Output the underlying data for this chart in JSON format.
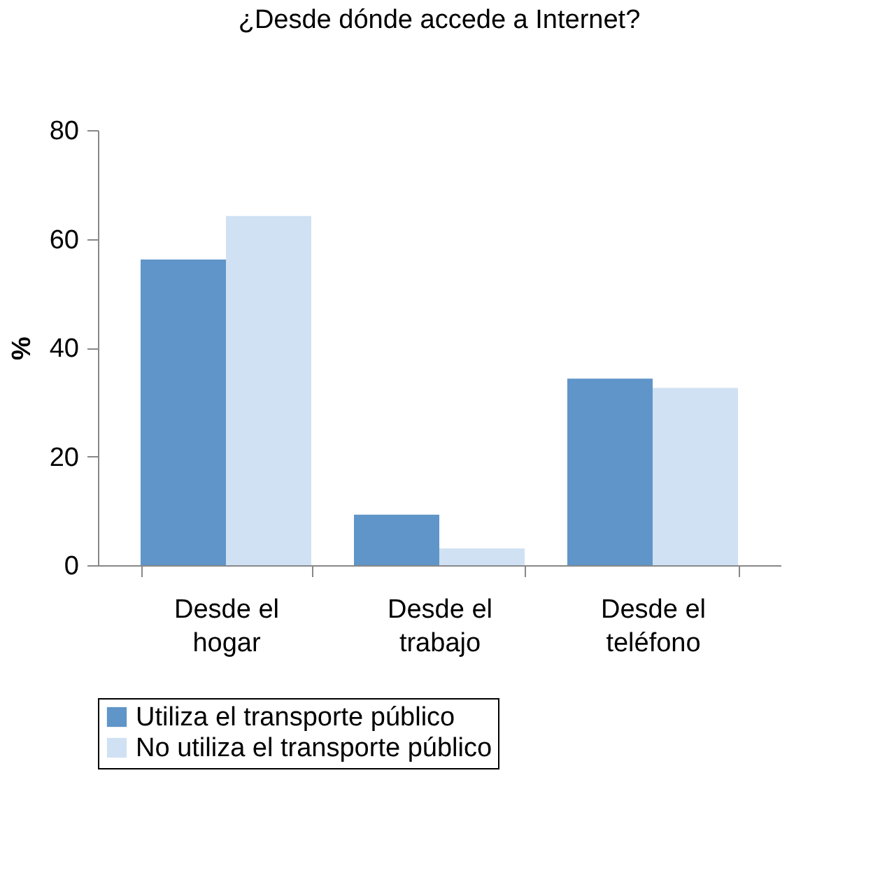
{
  "chart_data": {
    "type": "bar",
    "title": "¿Desde dónde accede a Internet?",
    "ylabel": "%",
    "categories": [
      "Desde el hogar",
      "Desde el trabajo",
      "Desde el teléfono"
    ],
    "series": [
      {
        "name": "Utiliza el transporte público",
        "color": "#5f95c8",
        "values": [
          56.2,
          9.3,
          34.3
        ]
      },
      {
        "name": "No utiliza el transporte público",
        "color": "#d0e1f3",
        "values": [
          64.2,
          3.1,
          32.6
        ]
      }
    ],
    "ylim": [
      0,
      80
    ],
    "yticks": [
      0,
      20,
      40,
      60,
      80
    ],
    "grid": false,
    "legend": "bottom"
  }
}
